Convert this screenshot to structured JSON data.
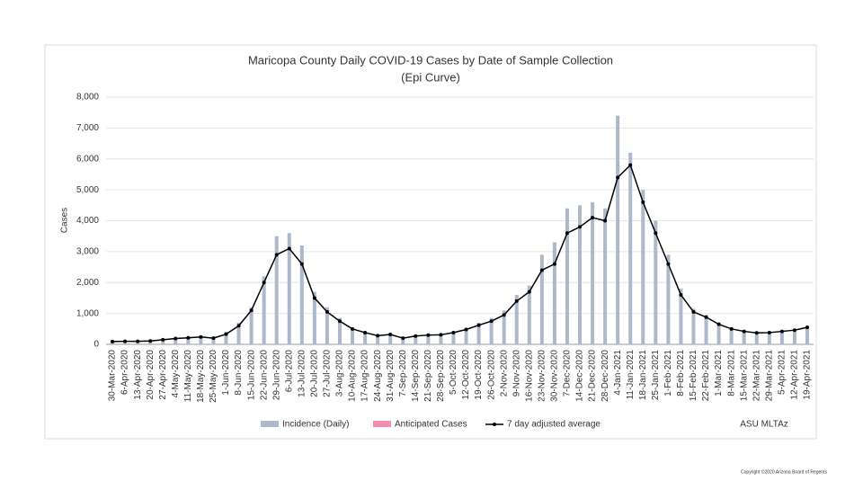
{
  "chart_data": {
    "type": "bar_line",
    "title": "Maricopa County Daily COVID-19 Cases by Date of Sample Collection",
    "subtitle": "(Epi Curve)",
    "y_label": "Cases",
    "categories": [
      "30-Mar-2020",
      "6-Apr-2020",
      "13-Apr-2020",
      "20-Apr-2020",
      "27-Apr-2020",
      "4-May-2020",
      "11-May-2020",
      "18-May-2020",
      "25-May-2020",
      "1-Jun-2020",
      "8-Jun-2020",
      "15-Jun-2020",
      "22-Jun-2020",
      "29-Jun-2020",
      "6-Jul-2020",
      "13-Jul-2020",
      "20-Jul-2020",
      "27-Jul-2020",
      "3-Aug-2020",
      "10-Aug-2020",
      "17-Aug-2020",
      "24-Aug-2020",
      "31-Aug-2020",
      "7-Sep-2020",
      "14-Sep-2020",
      "21-Sep-2020",
      "28-Sep-2020",
      "5-Oct-2020",
      "12-Oct-2020",
      "19-Oct-2020",
      "26-Oct-2020",
      "2-Nov-2020",
      "9-Nov-2020",
      "16-Nov-2020",
      "23-Nov-2020",
      "30-Nov-2020",
      "7-Dec-2020",
      "14-Dec-2020",
      "21-Dec-2020",
      "28-Dec-2020",
      "4-Jan-2021",
      "11-Jan-2021",
      "18-Jan-2021",
      "25-Jan-2021",
      "1-Feb-2021",
      "8-Feb-2021",
      "15-Feb-2021",
      "22-Feb-2021",
      "1-Mar-2021",
      "8-Mar-2021",
      "15-Mar-2021",
      "22-Mar-2021",
      "29-Mar-2021",
      "5-Apr-2021",
      "12-Apr-2021",
      "19-Apr-2021"
    ],
    "series": [
      {
        "name": "Incidence (Daily)",
        "color": "#adb9ca",
        "kind": "bar",
        "values": [
          100,
          110,
          120,
          130,
          170,
          210,
          240,
          260,
          220,
          400,
          700,
          1200,
          2200,
          3500,
          3600,
          3200,
          1700,
          1200,
          850,
          550,
          420,
          300,
          350,
          230,
          300,
          330,
          340,
          420,
          530,
          700,
          850,
          1100,
          1600,
          1900,
          2900,
          3300,
          4400,
          4500,
          4600,
          4400,
          7400,
          6200,
          5000,
          4000,
          2900,
          1800,
          1150,
          950,
          700,
          550,
          450,
          400,
          420,
          460,
          500,
          600
        ]
      },
      {
        "name": "Anticipated Cases",
        "color": "#f28cb1",
        "kind": "bar",
        "values": [
          null,
          null,
          null,
          null,
          null,
          null,
          null,
          null,
          null,
          null,
          null,
          null,
          null,
          null,
          null,
          null,
          null,
          null,
          null,
          null,
          null,
          null,
          null,
          null,
          null,
          null,
          null,
          null,
          null,
          null,
          null,
          null,
          null,
          null,
          null,
          null,
          null,
          null,
          null,
          null,
          null,
          null,
          null,
          null,
          null,
          null,
          null,
          null,
          null,
          null,
          null,
          null,
          null,
          null,
          null,
          null
        ]
      },
      {
        "name": "7 day adjusted average",
        "color": "#000000",
        "kind": "line",
        "values": [
          90,
          100,
          100,
          110,
          150,
          190,
          210,
          240,
          200,
          330,
          600,
          1100,
          2000,
          2900,
          3100,
          2600,
          1500,
          1050,
          750,
          500,
          380,
          280,
          320,
          200,
          270,
          300,
          310,
          380,
          480,
          620,
          750,
          950,
          1400,
          1700,
          2400,
          2600,
          3600,
          3800,
          4100,
          4000,
          5400,
          5800,
          4600,
          3600,
          2600,
          1600,
          1050,
          880,
          650,
          500,
          420,
          370,
          380,
          420,
          460,
          550
        ]
      }
    ],
    "ylim": [
      0,
      8000
    ],
    "yticks": [
      0,
      {
        "value": 1000,
        "label": "1,000"
      },
      {
        "value": 2000,
        "label": "2,000"
      },
      {
        "value": 3000,
        "label": "3,000"
      },
      {
        "value": 4000,
        "label": "4,000"
      },
      {
        "value": 5000,
        "label": "5,000"
      },
      {
        "value": 6000,
        "label": "6,000"
      },
      {
        "value": 7000,
        "label": "7,000"
      },
      {
        "value": 8000,
        "label": "8,000"
      }
    ],
    "grid": true,
    "legend": "bottom",
    "source": "ASU MLTAz"
  },
  "footer": "Copyright ©2020 Arizona Board of Regents"
}
